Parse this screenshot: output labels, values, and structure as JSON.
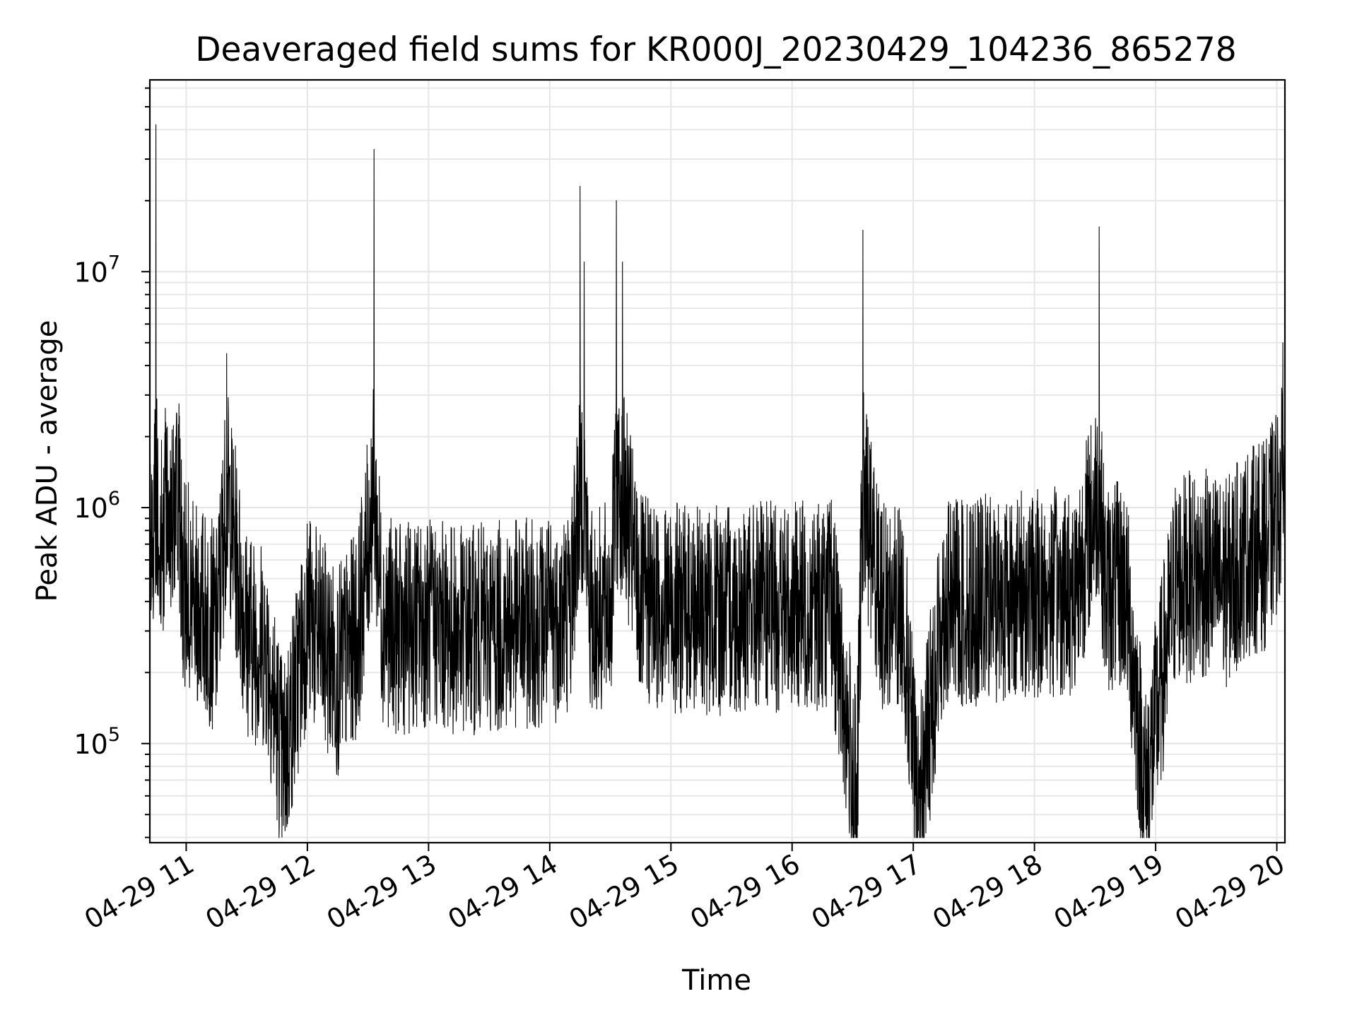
{
  "chart_data": {
    "type": "line",
    "title": "Deaveraged field sums for KR000J_20230429_104236_865278",
    "xlabel": "Time",
    "ylabel": "Peak ADU - average",
    "yscale": "log",
    "grid": true,
    "line_color": "#000000",
    "grid_color": "#e6e6e6",
    "x_tick_labels": [
      "04-29 11",
      "04-29 12",
      "04-29 13",
      "04-29 14",
      "04-29 15",
      "04-29 16",
      "04-29 17",
      "04-29 18",
      "04-29 19",
      "04-29 20"
    ],
    "y_ticks": [
      {
        "base": "10",
        "exp": "5",
        "value": 100000
      },
      {
        "base": "10",
        "exp": "6",
        "value": 1000000
      },
      {
        "base": "10",
        "exp": "7",
        "value": 10000000
      }
    ],
    "xlim": [
      "2023-04-29 10:42",
      "2023-04-29 20:04"
    ],
    "ylim": [
      38000,
      65000000
    ],
    "series": [
      {
        "x": [
          "2023-04-29 10:42",
          "2023-04-29 10:45",
          "2023-04-29 10:48",
          "2023-04-29 10:50",
          "2023-04-29 10:53",
          "2023-04-29 10:56",
          "2023-04-29 10:58",
          "2023-04-29 11:05",
          "2023-04-29 11:15",
          "2023-04-29 11:20",
          "2023-04-29 11:30",
          "2023-04-29 11:40",
          "2023-04-29 11:48",
          "2023-04-29 12:00",
          "2023-04-29 12:15",
          "2023-04-29 12:25",
          "2023-04-29 12:33",
          "2023-04-29 12:37",
          "2023-04-29 12:45",
          "2023-04-29 13:00",
          "2023-04-29 13:15",
          "2023-04-29 13:30",
          "2023-04-29 13:45",
          "2023-04-29 14:00",
          "2023-04-29 14:10",
          "2023-04-29 14:15",
          "2023-04-29 14:17",
          "2023-04-29 14:20",
          "2023-04-29 14:30",
          "2023-04-29 14:33",
          "2023-04-29 14:36",
          "2023-04-29 14:45",
          "2023-04-29 15:00",
          "2023-04-29 15:15",
          "2023-04-29 15:30",
          "2023-04-29 15:45",
          "2023-04-29 16:00",
          "2023-04-29 16:20",
          "2023-04-29 16:32",
          "2023-04-29 16:35",
          "2023-04-29 16:45",
          "2023-04-29 16:55",
          "2023-04-29 17:02",
          "2023-04-29 17:15",
          "2023-04-29 17:30",
          "2023-04-29 17:45",
          "2023-04-29 18:05",
          "2023-04-29 18:20",
          "2023-04-29 18:32",
          "2023-04-29 18:35",
          "2023-04-29 18:45",
          "2023-04-29 18:55",
          "2023-04-29 19:10",
          "2023-04-29 19:25",
          "2023-04-29 19:35",
          "2023-04-29 19:45",
          "2023-04-29 19:55",
          "2023-04-29 20:03"
        ],
        "y": [
          600000,
          42000000,
          700000,
          2500000,
          800000,
          1200000,
          500000,
          400000,
          300000,
          4500000,
          300000,
          250000,
          80000,
          350000,
          200000,
          300000,
          33000000,
          350000,
          300000,
          330000,
          300000,
          310000,
          320000,
          330000,
          380000,
          23000000,
          11000000,
          350000,
          380000,
          20000000,
          11000000,
          400000,
          380000,
          360000,
          370000,
          380000,
          380000,
          390000,
          55000,
          15000000,
          370000,
          380000,
          50000,
          380000,
          400000,
          420000,
          430000,
          450000,
          15500000,
          450000,
          470000,
          62000,
          500000,
          520000,
          480000,
          650000,
          700000,
          5000000
        ]
      }
    ]
  }
}
